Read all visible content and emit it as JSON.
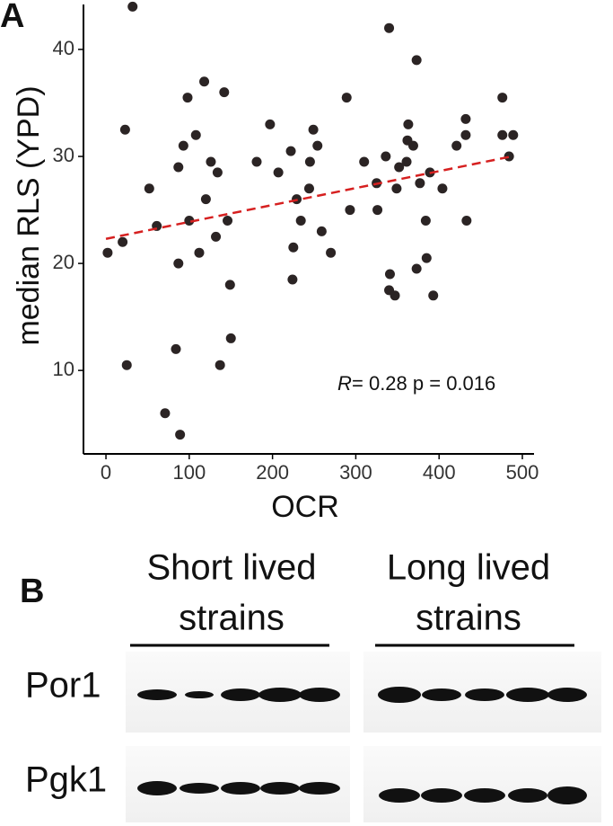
{
  "chart_data": {
    "type": "scatter",
    "panel_label": "A",
    "x_label": "OCR",
    "y_label": "median RLS (YPD)",
    "color": "#2b2424",
    "x": [
      32,
      23,
      2,
      61,
      52,
      20,
      25,
      71,
      89,
      84,
      87,
      87,
      93,
      98,
      100,
      108,
      118,
      120,
      112,
      126,
      134,
      132,
      142,
      146,
      149,
      150,
      137,
      181,
      197,
      207,
      222,
      229,
      234,
      225,
      224,
      244,
      245,
      249,
      254,
      259,
      270,
      289,
      293,
      310,
      326,
      325,
      336,
      340,
      341,
      340,
      347,
      349,
      352,
      361,
      362,
      363,
      369,
      373,
      373,
      377,
      384,
      385,
      389,
      393,
      404,
      421,
      432,
      432,
      433,
      476,
      476,
      484,
      489
    ],
    "values": [
      44,
      32.5,
      21,
      23.5,
      27,
      22,
      10.5,
      6,
      4,
      12,
      20,
      29,
      31,
      35.5,
      24,
      32,
      37,
      26,
      21,
      29.5,
      28.5,
      22.5,
      36,
      24,
      18,
      13,
      10.5,
      29.5,
      33,
      28.5,
      30.5,
      26,
      24,
      21.5,
      18.5,
      27,
      29.5,
      32.5,
      31,
      23,
      21,
      35.5,
      25,
      29.5,
      25,
      27.5,
      30,
      42,
      19,
      17.5,
      17,
      27,
      29,
      29.5,
      31.5,
      33,
      31,
      39,
      19.5,
      27.5,
      24,
      20.5,
      28.5,
      17,
      27,
      31,
      32,
      33.5,
      24,
      35.5,
      32,
      30,
      32
    ],
    "trend": {
      "x": [
        0,
        487
      ],
      "values": [
        22.3,
        30
      ],
      "color": "#d62020"
    },
    "annotation": {
      "stat": "R",
      "text": "= 0.28 p = 0.016"
    },
    "xlim": [
      -27,
      514
    ],
    "ylim": [
      2.2,
      44.2
    ],
    "xticks": [
      0,
      100,
      200,
      300,
      400,
      500
    ],
    "yticks": [
      10,
      20,
      30,
      40
    ]
  },
  "blot": {
    "panel_label": "B",
    "groups": [
      {
        "lines": [
          "Short lived",
          "strains"
        ]
      },
      {
        "lines": [
          "Long lived",
          "strains"
        ]
      }
    ],
    "rows": [
      "Por1",
      "Pgk1"
    ]
  }
}
